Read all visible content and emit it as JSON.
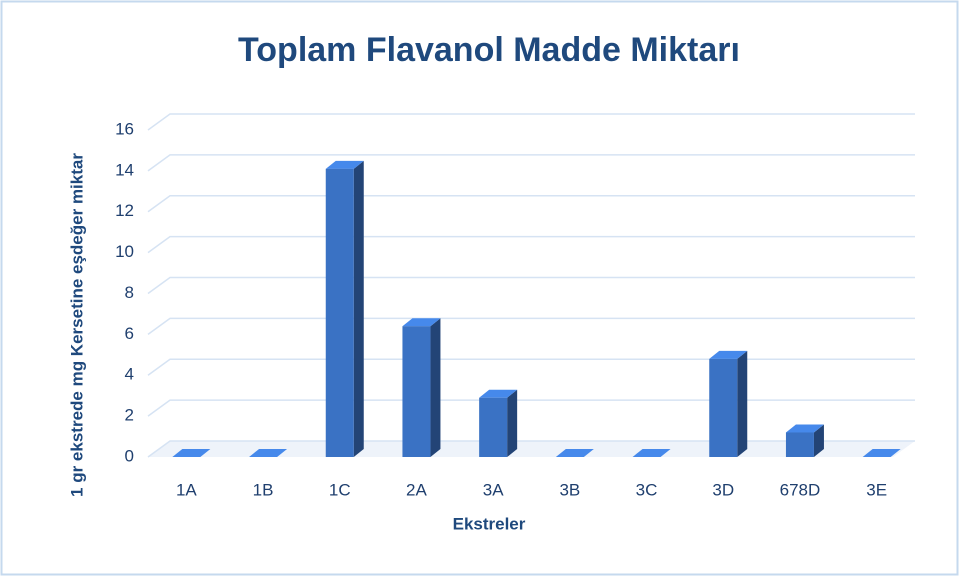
{
  "chart_data": {
    "type": "bar",
    "title": "Toplam Flavanol Madde Miktarı",
    "x_label": "Ekstreler",
    "y_label": "1 gr ekstrede mg Kersetine eşdeğer miktar",
    "categories": [
      "1A",
      "1B",
      "1C",
      "2A",
      "3A",
      "3B",
      "3C",
      "3D",
      "678D",
      "3E"
    ],
    "values": [
      0,
      0,
      14.1,
      6.4,
      2.9,
      0,
      0,
      4.8,
      1.2,
      0
    ],
    "color": "#3a72c4",
    "ylim": [
      0,
      16
    ],
    "yticks": [
      0,
      2,
      4,
      6,
      8,
      10,
      12,
      14,
      16
    ],
    "grid": true
  }
}
